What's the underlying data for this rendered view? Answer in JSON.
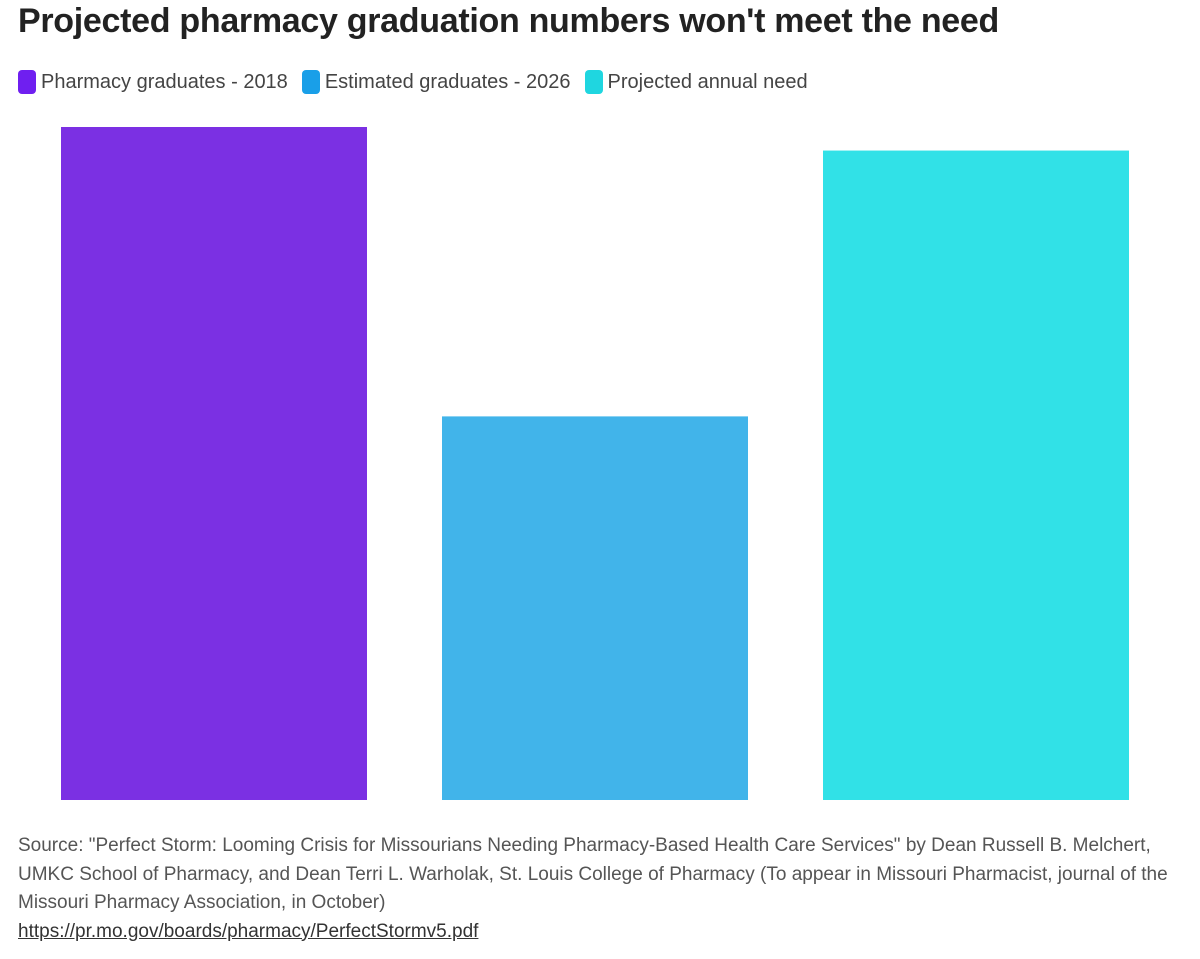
{
  "title": "Projected pharmacy graduation numbers won't meet the need",
  "chart_data": {
    "type": "bar",
    "categories": [
      "Pharmacy graduates - 2018",
      "Estimated graduates - 2026",
      "Projected annual need"
    ],
    "values": [
      100,
      57,
      96.5
    ],
    "colors": [
      "#7b30e3",
      "#41b4ea",
      "#31e1e7"
    ],
    "legend_swatch_colors": [
      "#6f1ff0",
      "#199fe8",
      "#1fd6e0"
    ],
    "legend_position": "top-left",
    "grid": false,
    "ylim": [
      0,
      100
    ]
  },
  "source_text": "Source: \"Perfect Storm: Looming Crisis for Missourians Needing Pharmacy-Based Health Care Services\" by Dean Russell B. Melchert, UMKC School of Pharmacy, and Dean Terri L. Warholak, St. Louis College of Pharmacy (To appear in Missouri Pharmacist, journal of the Missouri Pharmacy Association, in October)",
  "source_link": "https://pr.mo.gov/boards/pharmacy/PerfectStormv5.pdf"
}
